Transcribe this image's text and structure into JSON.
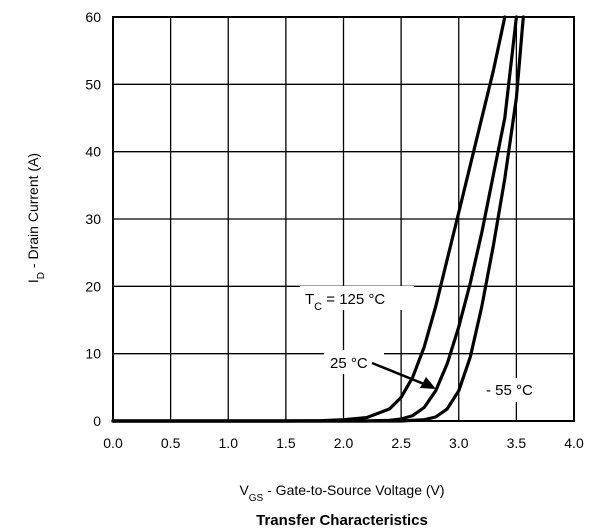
{
  "chart_data": {
    "type": "line",
    "title": "Transfer Characteristics",
    "xlabel": {
      "main": "V",
      "sub": "GS",
      "rest": " - Gate-to-Source Voltage (V)"
    },
    "ylabel": {
      "main": "I",
      "sub": "D",
      "rest": " - Drain Current (A)"
    },
    "xlim": [
      0.0,
      4.0
    ],
    "ylim": [
      0,
      60
    ],
    "x_ticks": [
      "0.0",
      "0.5",
      "1.0",
      "1.5",
      "2.0",
      "2.5",
      "3.0",
      "3.5",
      "4.0"
    ],
    "y_ticks": [
      "0",
      "10",
      "20",
      "30",
      "40",
      "50",
      "60"
    ],
    "grid": true,
    "series": [
      {
        "name": "TC = 125 °C",
        "x": [
          0.0,
          1.5,
          1.8,
          2.0,
          2.2,
          2.4,
          2.5,
          2.6,
          2.7,
          2.8,
          2.9,
          3.0,
          3.1,
          3.2,
          3.3,
          3.4
        ],
        "y": [
          0.0,
          0.0,
          0.05,
          0.2,
          0.5,
          1.8,
          3.5,
          6.5,
          11.0,
          17.0,
          24.0,
          31.0,
          38.0,
          45.0,
          52.0,
          60.0
        ]
      },
      {
        "name": "25 °C",
        "x": [
          0.0,
          2.2,
          2.4,
          2.5,
          2.6,
          2.7,
          2.8,
          2.9,
          3.0,
          3.1,
          3.2,
          3.3,
          3.4,
          3.5
        ],
        "y": [
          0.0,
          0.0,
          0.1,
          0.3,
          0.8,
          2.0,
          4.5,
          8.5,
          14.0,
          20.5,
          28.0,
          36.5,
          45.0,
          60.0
        ]
      },
      {
        "name": "- 55 °C",
        "x": [
          0.0,
          2.5,
          2.7,
          2.8,
          2.9,
          3.0,
          3.1,
          3.2,
          3.3,
          3.4,
          3.5,
          3.56
        ],
        "y": [
          0.0,
          0.0,
          0.2,
          0.6,
          1.8,
          4.5,
          9.5,
          17.0,
          26.0,
          36.0,
          48.0,
          60.0
        ]
      }
    ],
    "annotations": {
      "label_125": {
        "main": "T",
        "sub": "C",
        "rest": " = 125 °C"
      },
      "label_25": "25 °C",
      "label_55": "- 55 °C"
    }
  }
}
